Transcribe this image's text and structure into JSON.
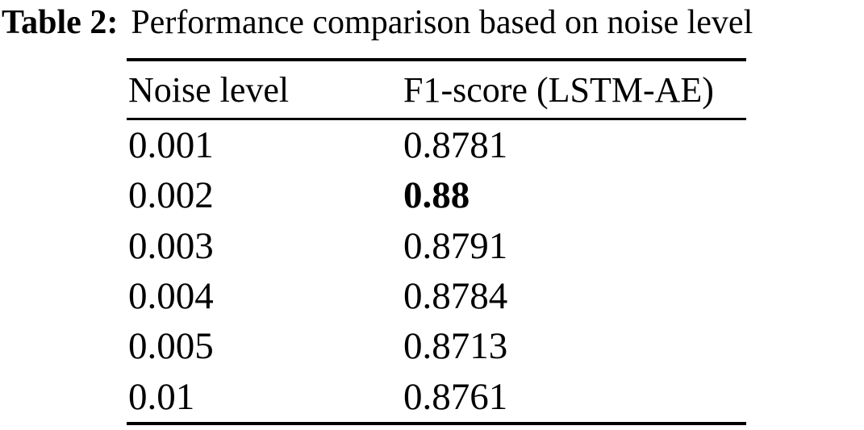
{
  "caption": {
    "label": "Table 2:",
    "text": "Performance comparison based on noise level"
  },
  "table": {
    "columns": [
      {
        "key": "noise_level",
        "label": "Noise level"
      },
      {
        "key": "f1_score",
        "label": "F1-score (LSTM-AE)"
      }
    ],
    "rows": [
      {
        "noise_level": "0.001",
        "f1_score": "0.8781",
        "f1_bold": false
      },
      {
        "noise_level": "0.002",
        "f1_score": "0.88",
        "f1_bold": true
      },
      {
        "noise_level": "0.003",
        "f1_score": "0.8791",
        "f1_bold": false
      },
      {
        "noise_level": "0.004",
        "f1_score": "0.8784",
        "f1_bold": false
      },
      {
        "noise_level": "0.005",
        "f1_score": "0.8713",
        "f1_bold": false
      },
      {
        "noise_level": "0.01",
        "f1_score": "0.8761",
        "f1_bold": false
      }
    ]
  },
  "colors": {
    "text": "#000000",
    "background": "#ffffff",
    "rule": "#000000"
  }
}
